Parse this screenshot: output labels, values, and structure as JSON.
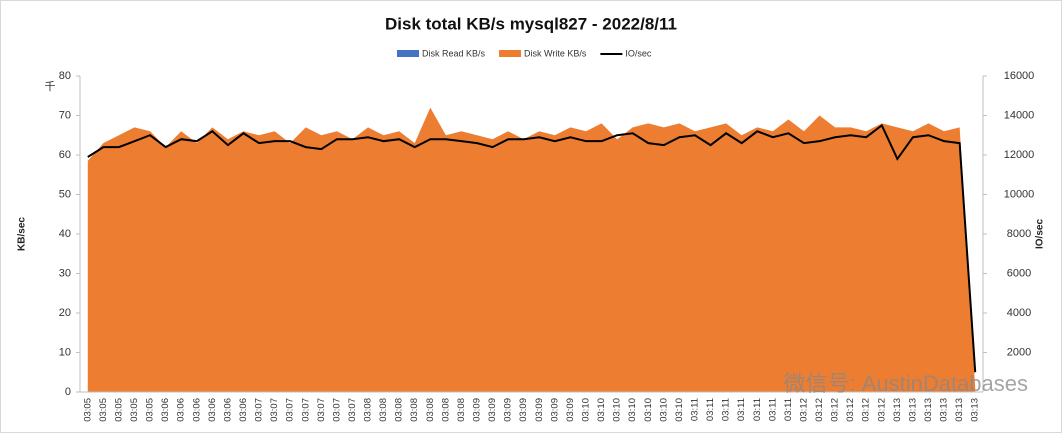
{
  "chart_data": {
    "type": "area-line",
    "title": "Disk total KB/s mysql827 - 2022/8/11",
    "y_label": "KB/sec",
    "y_unit": "千",
    "y2_label": "IO/sec",
    "watermark": "微信号: AustinDatabases",
    "categories": [
      "03:05",
      "03:05",
      "03:05",
      "03:05",
      "03:05",
      "03:06",
      "03:06",
      "03:06",
      "03:06",
      "03:06",
      "03:06",
      "03:07",
      "03:07",
      "03:07",
      "03:07",
      "03:07",
      "03:07",
      "03:07",
      "03:08",
      "03:08",
      "03:08",
      "03:08",
      "03:08",
      "03:08",
      "03:08",
      "03:09",
      "03:09",
      "03:09",
      "03:09",
      "03:09",
      "03:09",
      "03:09",
      "03:10",
      "03:10",
      "03:10",
      "03:10",
      "03:10",
      "03:10",
      "03:10",
      "03:11",
      "03:11",
      "03:11",
      "03:11",
      "03:11",
      "03:11",
      "03:11",
      "03:12",
      "03:12",
      "03:12",
      "03:12",
      "03:12",
      "03:12",
      "03:13",
      "03:13",
      "03:13",
      "03:13",
      "03:13",
      "03:13"
    ],
    "series": [
      {
        "name": "Disk Read KB/s",
        "color": "#4472c4",
        "kind": "area",
        "values": [
          0,
          0,
          0,
          0,
          0,
          0,
          0,
          0,
          0,
          0,
          0,
          0,
          0,
          0,
          0,
          0,
          0,
          0,
          0,
          0,
          0,
          0,
          0,
          0,
          0,
          0,
          0,
          0,
          0,
          0,
          0,
          0,
          0,
          0,
          0,
          0,
          0,
          0,
          0,
          0,
          0,
          0,
          0,
          0,
          0,
          0,
          0,
          0,
          0,
          0,
          0,
          0,
          0,
          0,
          0,
          0,
          0,
          0
        ]
      },
      {
        "name": "Disk Write KB/s",
        "color": "#ed7d31",
        "kind": "area",
        "values": [
          58.5,
          63,
          65,
          67,
          66,
          62,
          66,
          63,
          67,
          64,
          66,
          65,
          66,
          63,
          67,
          65,
          66,
          64,
          67,
          65,
          66,
          63,
          72,
          65,
          66,
          65,
          64,
          66,
          64,
          66,
          65,
          67,
          66,
          68,
          64,
          67,
          68,
          67,
          68,
          66,
          67,
          68,
          65,
          67,
          66,
          69,
          66,
          70,
          67,
          67,
          66,
          68,
          67,
          66,
          68,
          66,
          67,
          1
        ]
      },
      {
        "name": "IO/sec",
        "color": "#000000",
        "kind": "line",
        "axis": "y2",
        "values": [
          11900,
          12400,
          12400,
          12700,
          13000,
          12400,
          12800,
          12700,
          13200,
          12500,
          13100,
          12600,
          12700,
          12700,
          12400,
          12300,
          12800,
          12800,
          12900,
          12700,
          12800,
          12400,
          12800,
          12800,
          12700,
          12600,
          12400,
          12800,
          12800,
          12900,
          12700,
          12900,
          12700,
          12700,
          13000,
          13100,
          12600,
          12500,
          12900,
          13000,
          12500,
          13100,
          12600,
          13200,
          12900,
          13100,
          12600,
          12700,
          12900,
          13000,
          12900,
          13500,
          11800,
          12900,
          13000,
          12700,
          12600,
          1000
        ]
      }
    ],
    "ylim": [
      0,
      80
    ],
    "yticks": [
      0,
      10,
      20,
      30,
      40,
      50,
      60,
      70,
      80
    ],
    "y2lim": [
      0,
      16000
    ],
    "y2ticks": [
      2000,
      4000,
      6000,
      8000,
      10000,
      12000,
      14000,
      16000
    ],
    "legend": "top"
  }
}
